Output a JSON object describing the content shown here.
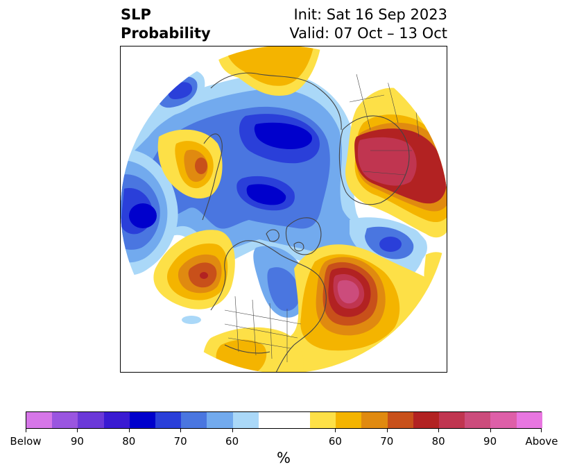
{
  "header": {
    "title_line1": "SLP",
    "title_line2": "Probability",
    "init_label": "Init: Sat 16 Sep 2023",
    "valid_label": "Valid: 07 Oct – 13 Oct"
  },
  "colorbar": {
    "label": "%",
    "colors": [
      "#d676e8",
      "#9a55e0",
      "#6b38d8",
      "#3a1ad2",
      "#0000cc",
      "#2a3fd9",
      "#4a76e0",
      "#72aaee",
      "#aad8f8",
      "#ffffff",
      "#ffffff",
      "#fde047",
      "#f4b400",
      "#e08a10",
      "#c8501a",
      "#b22222",
      "#c03550",
      "#cc4c7c",
      "#de5fa8",
      "#e876e0"
    ],
    "tick_labels": [
      "Below",
      "90",
      "80",
      "70",
      "60",
      "60",
      "70",
      "80",
      "90",
      "Above"
    ]
  },
  "map": {
    "colors": {
      "blue_light": "#aad8f8",
      "blue_mid": "#72aaee",
      "blue": "#4a76e0",
      "blue_dark": "#2a3fd9",
      "blue_core": "#0000cc",
      "yellow": "#fde047",
      "orange": "#f4b400",
      "orange_dark": "#e08a10",
      "red_orange": "#c8501a",
      "red": "#b22222",
      "crimson": "#c03550",
      "pink": "#cc4c7c",
      "pink_light": "#de5fa8",
      "coast": "#444444"
    }
  }
}
